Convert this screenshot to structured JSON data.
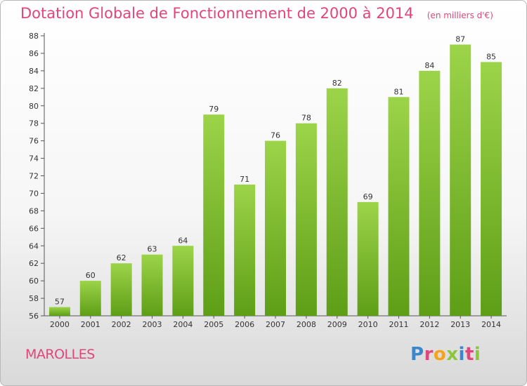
{
  "header": {
    "title": "Dotation Globale de Fonctionnement de 2000 à 2014",
    "unit": "(en milliers d'€)"
  },
  "footer": {
    "commune": "MAROLLES",
    "logo": "Proxiti"
  },
  "colors": {
    "title": "#e0457b",
    "bar_top": "#9cd449",
    "bar_bottom": "#5e9e17",
    "logo_letters": [
      "#3b87c9",
      "#e0457b",
      "#f5a31a",
      "#8cc63f",
      "#3b87c9",
      "#e0457b",
      "#8cc63f"
    ]
  },
  "chart_data": {
    "type": "bar",
    "title": "Dotation Globale de Fonctionnement de 2000 à 2014",
    "subtitle": "(en milliers d'€)",
    "xlabel": "",
    "ylabel": "",
    "categories": [
      "2000",
      "2001",
      "2002",
      "2003",
      "2004",
      "2005",
      "2006",
      "2007",
      "2008",
      "2009",
      "2010",
      "2011",
      "2012",
      "2013",
      "2014"
    ],
    "values": [
      57,
      60,
      62,
      63,
      64,
      79,
      71,
      76,
      78,
      82,
      69,
      81,
      84,
      87,
      85
    ],
    "ylim": [
      56,
      88
    ],
    "yticks": [
      56,
      58,
      60,
      62,
      64,
      66,
      68,
      70,
      72,
      74,
      76,
      78,
      80,
      82,
      84,
      86,
      88
    ],
    "grid": false,
    "data_labels": true
  }
}
